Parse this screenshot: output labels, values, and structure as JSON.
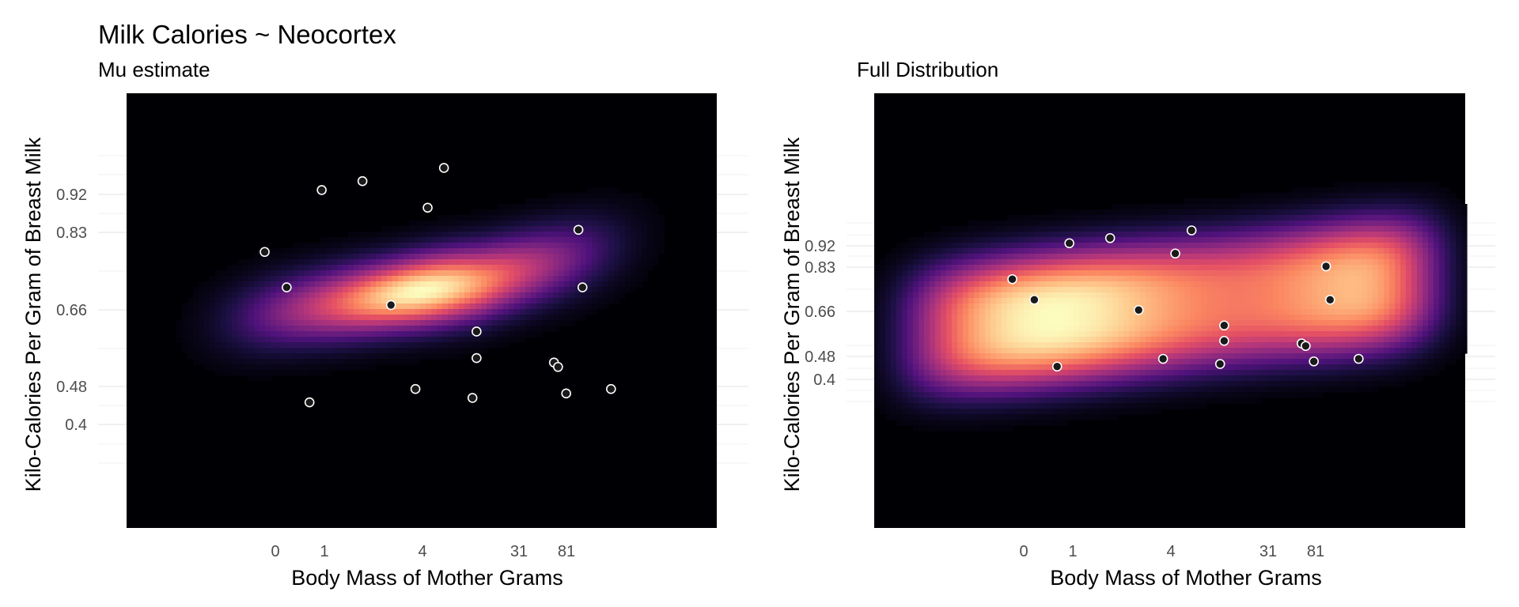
{
  "figure": {
    "title": "Milk Calories ~ Neocortex"
  },
  "chart_data": [
    {
      "type": "heatmap",
      "subtitle": "Mu estimate",
      "xlabel": "Body Mass of Mother Grams",
      "ylabel": "Kilo-Calories Per Gram of Breast Milk",
      "x_ticks": [
        "0",
        "1",
        "4",
        "31",
        "81"
      ],
      "y_ticks": [
        "0.4",
        "0.48",
        "0.66",
        "0.83",
        "0.92"
      ],
      "density_colormap": "magma",
      "grid": true,
      "points": [
        {
          "x": -0.15,
          "y": 0.79
        },
        {
          "x": 0.12,
          "y": 0.71
        },
        {
          "x": 0.55,
          "y": 0.93
        },
        {
          "x": 1.05,
          "y": 0.95
        },
        {
          "x": 1.4,
          "y": 0.67
        },
        {
          "x": 1.85,
          "y": 0.89
        },
        {
          "x": 2.05,
          "y": 0.98
        },
        {
          "x": 2.45,
          "y": 0.61
        },
        {
          "x": 2.45,
          "y": 0.55
        },
        {
          "x": 3.7,
          "y": 0.84
        },
        {
          "x": 0.4,
          "y": 0.45
        },
        {
          "x": 1.7,
          "y": 0.48
        },
        {
          "x": 2.4,
          "y": 0.46
        },
        {
          "x": 3.4,
          "y": 0.54
        },
        {
          "x": 3.45,
          "y": 0.53
        },
        {
          "x": 3.55,
          "y": 0.47
        },
        {
          "x": 3.75,
          "y": 0.71
        },
        {
          "x": 4.1,
          "y": 0.48
        }
      ]
    },
    {
      "type": "heatmap",
      "subtitle": "Full Distribution",
      "xlabel": "Body Mass of Mother Grams",
      "ylabel": "Kilo-Calories Per Gram of Breast Milk",
      "x_ticks": [
        "0",
        "1",
        "4",
        "31",
        "81"
      ],
      "y_ticks": [
        "0.4",
        "0.48",
        "0.66",
        "0.83",
        "0.92"
      ],
      "density_colormap": "magma",
      "grid": true,
      "points": [
        {
          "x": -0.15,
          "y": 0.79
        },
        {
          "x": 0.12,
          "y": 0.71
        },
        {
          "x": 0.55,
          "y": 0.93
        },
        {
          "x": 1.05,
          "y": 0.95
        },
        {
          "x": 1.4,
          "y": 0.67
        },
        {
          "x": 1.85,
          "y": 0.89
        },
        {
          "x": 2.05,
          "y": 0.98
        },
        {
          "x": 2.45,
          "y": 0.61
        },
        {
          "x": 2.45,
          "y": 0.55
        },
        {
          "x": 3.7,
          "y": 0.84
        },
        {
          "x": 0.4,
          "y": 0.45
        },
        {
          "x": 1.7,
          "y": 0.48
        },
        {
          "x": 2.4,
          "y": 0.46
        },
        {
          "x": 3.4,
          "y": 0.54
        },
        {
          "x": 3.45,
          "y": 0.53
        },
        {
          "x": 3.55,
          "y": 0.47
        },
        {
          "x": 3.75,
          "y": 0.71
        },
        {
          "x": 4.1,
          "y": 0.48
        }
      ]
    }
  ]
}
